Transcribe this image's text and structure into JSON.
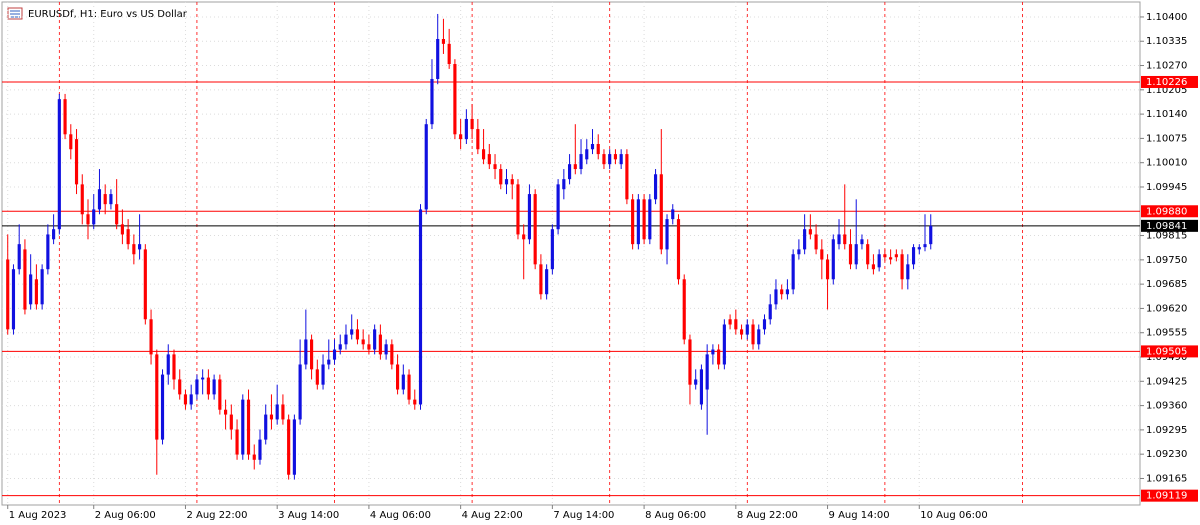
{
  "chart_data": {
    "type": "candlestick",
    "title": "EURUSDf, H1:  Euro vs US Dollar",
    "up_color": "#1010e0",
    "down_color": "#ff0000",
    "grid": true,
    "xlim": [
      -1,
      197.5
    ],
    "ylim": [
      1.09094,
      1.1044
    ],
    "xticks": [
      {
        "value": 0,
        "label": "1 Aug 2023"
      },
      {
        "value": 15,
        "label": "2 Aug 06:00"
      },
      {
        "value": 31,
        "label": "2 Aug 22:00"
      },
      {
        "value": 47,
        "label": "3 Aug 14:00"
      },
      {
        "value": 63,
        "label": "4 Aug 06:00"
      },
      {
        "value": 79,
        "label": "4 Aug 22:00"
      },
      {
        "value": 95,
        "label": "7 Aug 14:00"
      },
      {
        "value": 111,
        "label": "8 Aug 06:00"
      },
      {
        "value": 127,
        "label": "8 Aug 22:00"
      },
      {
        "value": 143,
        "label": "9 Aug 14:00"
      },
      {
        "value": 159,
        "label": "10 Aug 06:00"
      }
    ],
    "period_separators": [
      9,
      33,
      57,
      81,
      105,
      129,
      153,
      177
    ],
    "yticks": [
      {
        "value": 1.104,
        "label": "1.10400"
      },
      1.10335,
      {
        "value": 1.1027,
        "label": "1.10270"
      },
      1.10205,
      {
        "value": 1.1014,
        "label": "1.10140"
      },
      1.10075,
      {
        "value": 1.1001,
        "label": "1.10010"
      },
      1.09945,
      1.09815,
      {
        "value": 1.0975,
        "label": "1.09750"
      },
      1.09685,
      {
        "value": 1.0962,
        "label": "1.09620"
      },
      1.09555,
      {
        "value": 1.0949,
        "label": "1.09490"
      },
      1.09425,
      {
        "value": 1.0936,
        "label": "1.09360"
      },
      1.09295,
      {
        "value": 1.0923,
        "label": "1.09230"
      },
      1.09165
    ],
    "levels": [
      {
        "value": 1.10226,
        "color": "#ff0000"
      },
      {
        "value": 1.0988,
        "label": "1.09880",
        "color": "#ff0000"
      },
      {
        "value": 1.09841,
        "color": "#000000"
      },
      {
        "value": 1.09505,
        "color": "#ff0000"
      },
      {
        "value": 1.09119,
        "color": "#ff0000"
      }
    ],
    "ohlc": [
      [
        1.09751,
        1.09818,
        1.0955,
        1.09564
      ],
      [
        1.09564,
        1.09738,
        1.0955,
        1.09725
      ],
      [
        1.09725,
        1.09845,
        1.09711,
        1.09792
      ],
      [
        1.09778,
        1.09805,
        1.09604,
        1.09617
      ],
      [
        1.09631,
        1.09765,
        1.09617,
        1.09711
      ],
      [
        1.09698,
        1.09738,
        1.09617,
        1.09631
      ],
      [
        1.09631,
        1.09738,
        1.09617,
        1.09725
      ],
      [
        1.09725,
        1.09845,
        1.09711,
        1.09818
      ],
      [
        1.09805,
        1.09872,
        1.09792,
        1.09832
      ],
      [
        1.09832,
        1.10194,
        1.09818,
        1.1018
      ],
      [
        1.1018,
        1.10194,
        1.10073,
        1.10086
      ],
      [
        1.10086,
        1.10113,
        1.10019,
        1.10046
      ],
      [
        1.10073,
        1.101,
        1.09926,
        1.09952
      ],
      [
        1.09952,
        1.09979,
        1.09845,
        1.09872
      ],
      [
        1.09872,
        1.09912,
        1.09805,
        1.09845
      ],
      [
        1.09845,
        1.09926,
        1.09832,
        1.09885
      ],
      [
        1.09885,
        1.09993,
        1.09872,
        1.09939
      ],
      [
        1.09926,
        1.09952,
        1.09872,
        1.09899
      ],
      [
        1.09899,
        1.09939,
        1.09885,
        1.09926
      ],
      [
        1.09899,
        1.09966,
        1.09832,
        1.09845
      ],
      [
        1.09845,
        1.09885,
        1.09792,
        1.09818
      ],
      [
        1.09832,
        1.09859,
        1.09778,
        1.09792
      ],
      [
        1.09792,
        1.09818,
        1.09738,
        1.09765
      ],
      [
        1.09778,
        1.09872,
        1.09751,
        1.09792
      ],
      [
        1.09778,
        1.09792,
        1.09577,
        1.09591
      ],
      [
        1.09591,
        1.09617,
        1.0947,
        1.09497
      ],
      [
        1.09497,
        1.0951,
        1.09175,
        1.09269
      ],
      [
        1.09269,
        1.09457,
        1.09256,
        1.09443
      ],
      [
        1.09443,
        1.09524,
        1.09416,
        1.09497
      ],
      [
        1.09497,
        1.0951,
        1.09403,
        1.0943
      ],
      [
        1.0943,
        1.09457,
        1.09376,
        1.0939
      ],
      [
        1.0939,
        1.09403,
        1.09349,
        1.09363
      ],
      [
        1.09363,
        1.09416,
        1.09349,
        1.0939
      ],
      [
        1.0939,
        1.09443,
        1.09376,
        1.0943
      ],
      [
        1.0943,
        1.09457,
        1.0939,
        1.09435
      ],
      [
        1.09435,
        1.09457,
        1.09376,
        1.0939
      ],
      [
        1.0939,
        1.09443,
        1.09376,
        1.0943
      ],
      [
        1.0943,
        1.09443,
        1.09336,
        1.09349
      ],
      [
        1.09349,
        1.09376,
        1.09296,
        1.09336
      ],
      [
        1.09336,
        1.09363,
        1.09269,
        1.09296
      ],
      [
        1.09296,
        1.09323,
        1.09215,
        1.09229
      ],
      [
        1.09229,
        1.0939,
        1.09215,
        1.09376
      ],
      [
        1.09376,
        1.09403,
        1.09215,
        1.09229
      ],
      [
        1.09229,
        1.09256,
        1.09189,
        1.09215
      ],
      [
        1.09215,
        1.09296,
        1.09202,
        1.09269
      ],
      [
        1.09269,
        1.09363,
        1.09256,
        1.09336
      ],
      [
        1.09336,
        1.0939,
        1.09296,
        1.09323
      ],
      [
        1.09323,
        1.09416,
        1.09309,
        1.09363
      ],
      [
        1.09363,
        1.0939,
        1.09309,
        1.09323
      ],
      [
        1.09323,
        1.09336,
        1.09162,
        1.09175
      ],
      [
        1.09175,
        1.09336,
        1.09162,
        1.09323
      ],
      [
        1.09323,
        1.09537,
        1.09309,
        1.0947
      ],
      [
        1.0947,
        1.09617,
        1.09457,
        1.09537
      ],
      [
        1.09537,
        1.0955,
        1.0943,
        1.09457
      ],
      [
        1.09457,
        1.09483,
        1.09403,
        1.09416
      ],
      [
        1.09416,
        1.09497,
        1.09403,
        1.0947
      ],
      [
        1.0947,
        1.09537,
        1.09457,
        1.09483
      ],
      [
        1.09483,
        1.09537,
        1.0947,
        1.0951
      ],
      [
        1.0951,
        1.0955,
        1.09497,
        1.09524
      ],
      [
        1.09524,
        1.09577,
        1.0951,
        1.0955
      ],
      [
        1.0955,
        1.09604,
        1.09537,
        1.09564
      ],
      [
        1.09564,
        1.09591,
        1.09524,
        1.09537
      ],
      [
        1.09537,
        1.09564,
        1.0951,
        1.09524
      ],
      [
        1.09524,
        1.0955,
        1.09497,
        1.0951
      ],
      [
        1.0951,
        1.09577,
        1.09497,
        1.09564
      ],
      [
        1.0955,
        1.09577,
        1.09483,
        1.09497
      ],
      [
        1.09497,
        1.09537,
        1.09483,
        1.09524
      ],
      [
        1.09524,
        1.09537,
        1.09457,
        1.0947
      ],
      [
        1.0947,
        1.09497,
        1.0939,
        1.09403
      ],
      [
        1.09403,
        1.0947,
        1.0939,
        1.09443
      ],
      [
        1.09443,
        1.09457,
        1.09363,
        1.09376
      ],
      [
        1.09376,
        1.09403,
        1.09349,
        1.09363
      ],
      [
        1.09363,
        1.09899,
        1.09349,
        1.09885
      ],
      [
        1.09885,
        1.10127,
        1.09872,
        1.10113
      ],
      [
        1.10113,
        1.10287,
        1.101,
        1.10234
      ],
      [
        1.10234,
        1.10408,
        1.1022,
        1.10341
      ],
      [
        1.10341,
        1.10395,
        1.10301,
        1.10328
      ],
      [
        1.10328,
        1.10368,
        1.10261,
        1.10274
      ],
      [
        1.10274,
        1.10287,
        1.10073,
        1.10086
      ],
      [
        1.10086,
        1.10127,
        1.10046,
        1.10073
      ],
      [
        1.10073,
        1.10153,
        1.1006,
        1.10127
      ],
      [
        1.10127,
        1.10167,
        1.10073,
        1.101
      ],
      [
        1.101,
        1.10127,
        1.10033,
        1.10046
      ],
      [
        1.10046,
        1.101,
        1.10006,
        1.10019
      ],
      [
        1.10033,
        1.1006,
        1.09993,
        1.10006
      ],
      [
        1.10006,
        1.10033,
        1.09966,
        1.09993
      ],
      [
        1.09993,
        1.10006,
        1.09939,
        1.09952
      ],
      [
        1.09952,
        1.09993,
        1.09926,
        1.09966
      ],
      [
        1.09966,
        1.09979,
        1.09912,
        1.09952
      ],
      [
        1.09952,
        1.09966,
        1.09805,
        1.09818
      ],
      [
        1.09818,
        1.09845,
        1.09698,
        1.09805
      ],
      [
        1.09805,
        1.09952,
        1.09792,
        1.09926
      ],
      [
        1.09926,
        1.09939,
        1.09725,
        1.09738
      ],
      [
        1.09738,
        1.09765,
        1.09644,
        1.09658
      ],
      [
        1.09658,
        1.09738,
        1.09644,
        1.09725
      ],
      [
        1.09725,
        1.09845,
        1.09711,
        1.09832
      ],
      [
        1.09832,
        1.09966,
        1.09818,
        1.09952
      ],
      [
        1.09939,
        1.09993,
        1.09912,
        1.09966
      ],
      [
        1.09966,
        1.10033,
        1.09952,
        1.10006
      ],
      [
        1.10006,
        1.10113,
        1.09979,
        1.09993
      ],
      [
        1.09993,
        1.10073,
        1.09979,
        1.10033
      ],
      [
        1.10019,
        1.10073,
        1.10006,
        1.10046
      ],
      [
        1.10046,
        1.101,
        1.10033,
        1.1006
      ],
      [
        1.1006,
        1.10086,
        1.10019,
        1.10033
      ],
      [
        1.10033,
        1.10046,
        1.09993,
        1.10006
      ],
      [
        1.10006,
        1.10046,
        1.09993,
        1.10033
      ],
      [
        1.10033,
        1.10046,
        1.10006,
        1.10019
      ],
      [
        1.10006,
        1.10046,
        1.09993,
        1.10033
      ],
      [
        1.10033,
        1.10046,
        1.09899,
        1.09912
      ],
      [
        1.09912,
        1.09926,
        1.09778,
        1.09792
      ],
      [
        1.09792,
        1.09926,
        1.09778,
        1.09912
      ],
      [
        1.09912,
        1.09926,
        1.09792,
        1.09805
      ],
      [
        1.09805,
        1.09926,
        1.09792,
        1.09912
      ],
      [
        1.09912,
        1.09993,
        1.09899,
        1.09979
      ],
      [
        1.09979,
        1.101,
        1.09765,
        1.09778
      ],
      [
        1.09778,
        1.09872,
        1.09738,
        1.09859
      ],
      [
        1.09859,
        1.09899,
        1.09845,
        1.09885
      ],
      [
        1.09859,
        1.09872,
        1.09684,
        1.09698
      ],
      [
        1.09698,
        1.09711,
        1.09524,
        1.09537
      ],
      [
        1.09537,
        1.0955,
        1.09363,
        1.09416
      ],
      [
        1.09416,
        1.09457,
        1.09403,
        1.0943
      ],
      [
        1.09363,
        1.0947,
        1.09349,
        1.09457
      ],
      [
        1.09403,
        1.09524,
        1.09282,
        1.09497
      ],
      [
        1.09497,
        1.09524,
        1.0947,
        1.0951
      ],
      [
        1.0951,
        1.09524,
        1.09457,
        1.0947
      ],
      [
        1.0947,
        1.09591,
        1.09457,
        1.09577
      ],
      [
        1.09591,
        1.09604,
        1.09564,
        1.09577
      ],
      [
        1.09591,
        1.09617,
        1.0955,
        1.09564
      ],
      [
        1.09564,
        1.09577,
        1.09537,
        1.0955
      ],
      [
        1.0955,
        1.09591,
        1.09537,
        1.09577
      ],
      [
        1.09577,
        1.09591,
        1.0951,
        1.09524
      ],
      [
        1.09524,
        1.09577,
        1.0951,
        1.09564
      ],
      [
        1.09564,
        1.09604,
        1.0955,
        1.09591
      ],
      [
        1.09591,
        1.09658,
        1.09577,
        1.09631
      ],
      [
        1.09631,
        1.09698,
        1.09617,
        1.09671
      ],
      [
        1.09671,
        1.09684,
        1.09644,
        1.09658
      ],
      [
        1.09658,
        1.09698,
        1.09644,
        1.09671
      ],
      [
        1.09671,
        1.09778,
        1.09658,
        1.09765
      ],
      [
        1.09765,
        1.09805,
        1.09751,
        1.09778
      ],
      [
        1.09778,
        1.09872,
        1.09765,
        1.09832
      ],
      [
        1.09832,
        1.09872,
        1.09805,
        1.09818
      ],
      [
        1.09818,
        1.09845,
        1.09765,
        1.09778
      ],
      [
        1.09778,
        1.09805,
        1.09698,
        1.09751
      ],
      [
        1.09751,
        1.09765,
        1.09617,
        1.09698
      ],
      [
        1.09698,
        1.09818,
        1.09684,
        1.09805
      ],
      [
        1.09792,
        1.09859,
        1.09778,
        1.09818
      ],
      [
        1.09818,
        1.09952,
        1.09778,
        1.09792
      ],
      [
        1.09792,
        1.09832,
        1.09725,
        1.09738
      ],
      [
        1.09738,
        1.09912,
        1.09725,
        1.09792
      ],
      [
        1.09792,
        1.09818,
        1.09778,
        1.09805
      ],
      [
        1.09792,
        1.09805,
        1.09725,
        1.09738
      ],
      [
        1.09738,
        1.09765,
        1.09711,
        1.09725
      ],
      [
        1.0973,
        1.09778,
        1.09719,
        1.09765
      ],
      [
        1.09765,
        1.09778,
        1.09746,
        1.09757
      ],
      [
        1.09757,
        1.09778,
        1.09738,
        1.09751
      ],
      [
        1.09765,
        1.09778,
        1.09746,
        1.09757
      ],
      [
        1.09765,
        1.09778,
        1.09671,
        1.09698
      ],
      [
        1.09698,
        1.09765,
        1.09671,
        1.09738
      ],
      [
        1.09738,
        1.09792,
        1.09725,
        1.09784
      ],
      [
        1.09778,
        1.09792,
        1.09765,
        1.09784
      ],
      [
        1.09784,
        1.09872,
        1.09773,
        1.09792
      ],
      [
        1.09792,
        1.09872,
        1.09778,
        1.09841
      ]
    ]
  }
}
